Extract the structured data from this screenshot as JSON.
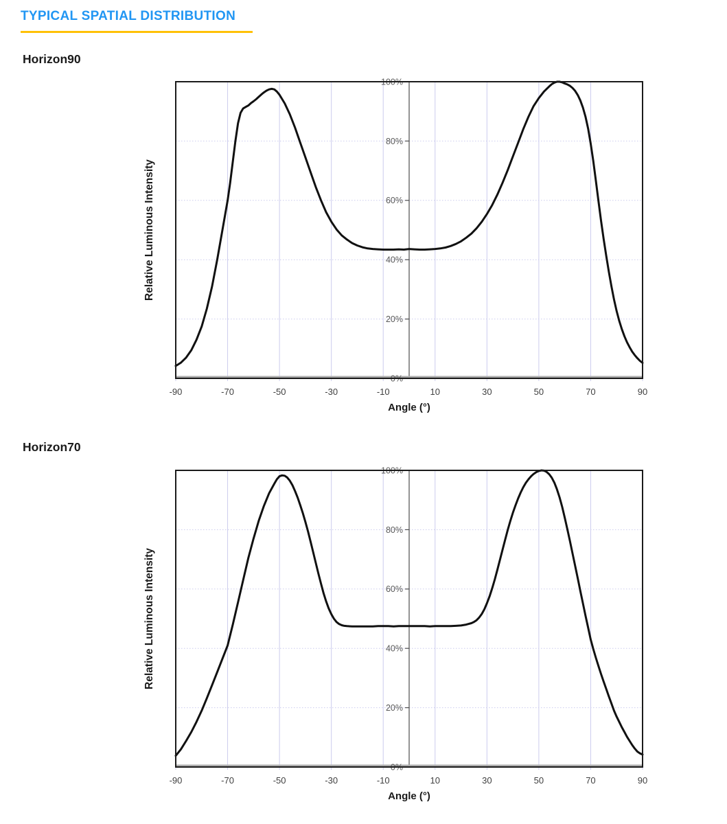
{
  "page": {
    "title": "TYPICAL SPATIAL DISTRIBUTION"
  },
  "colors": {
    "title_blue": "#2196F3",
    "underline_yellow": "#FFC107",
    "curve_black": "#111111",
    "gridline_lavender": "#ccccee",
    "center_axis_gray": "#4d4d4d",
    "baseline_gray": "#ababab",
    "y_tick_label_gray": "#595959",
    "x_tick_label_gray": "#3f3f3f",
    "plot_border_black": "#1a1a1a",
    "background": "#ffffff"
  },
  "charts": [
    {
      "heading": "Horizon90"
    },
    {
      "heading": "Horizon70"
    }
  ],
  "chart_data": [
    {
      "type": "line",
      "title": "Horizon90",
      "xlabel": "Angle (°)",
      "ylabel": "Relative Luminous Intensity",
      "xlim": [
        -90,
        90
      ],
      "ylim": [
        0,
        100
      ],
      "x_ticks": [
        -90,
        -70,
        -50,
        -30,
        -10,
        10,
        30,
        50,
        70,
        90
      ],
      "y_ticks": [
        0,
        20,
        40,
        60,
        80,
        100
      ],
      "y_tick_labels": [
        "0%",
        "20%",
        "40%",
        "60%",
        "80%",
        "100%"
      ],
      "grid": true,
      "legend": "none",
      "series": [
        {
          "name": "Relative Luminous Intensity",
          "points": [
            [
              -90,
              4.2
            ],
            [
              -88,
              5.3
            ],
            [
              -86,
              7
            ],
            [
              -84,
              9.5
            ],
            [
              -82,
              13
            ],
            [
              -80,
              17.5
            ],
            [
              -78,
              23.5
            ],
            [
              -76,
              31
            ],
            [
              -74,
              40
            ],
            [
              -72,
              50
            ],
            [
              -70,
              60
            ],
            [
              -69,
              66
            ],
            [
              -68,
              73
            ],
            [
              -67,
              80
            ],
            [
              -66,
              86
            ],
            [
              -65,
              89.5
            ],
            [
              -64,
              91
            ],
            [
              -63,
              91.5
            ],
            [
              -62,
              92
            ],
            [
              -61,
              92.8
            ],
            [
              -60,
              93.4
            ],
            [
              -59,
              94.1
            ],
            [
              -58,
              94.9
            ],
            [
              -57,
              95.7
            ],
            [
              -56,
              96.4
            ],
            [
              -55,
              97
            ],
            [
              -54,
              97.4
            ],
            [
              -53,
              97.6
            ],
            [
              -52,
              97.4
            ],
            [
              -51,
              96.7
            ],
            [
              -50,
              95.6
            ],
            [
              -48,
              92.7
            ],
            [
              -46,
              89
            ],
            [
              -44,
              84.5
            ],
            [
              -42,
              79.5
            ],
            [
              -40,
              74.5
            ],
            [
              -38,
              69.5
            ],
            [
              -36,
              64.5
            ],
            [
              -34,
              60
            ],
            [
              -32,
              56
            ],
            [
              -30,
              52.8
            ],
            [
              -28,
              50.2
            ],
            [
              -26,
              48.2
            ],
            [
              -24,
              46.8
            ],
            [
              -22,
              45.6
            ],
            [
              -20,
              44.8
            ],
            [
              -18,
              44.2
            ],
            [
              -16,
              43.8
            ],
            [
              -14,
              43.6
            ],
            [
              -12,
              43.5
            ],
            [
              -10,
              43.4
            ],
            [
              -8,
              43.4
            ],
            [
              -6,
              43.4
            ],
            [
              -4,
              43.5
            ],
            [
              -2,
              43.4
            ],
            [
              0,
              43.6
            ],
            [
              2,
              43.5
            ],
            [
              4,
              43.4
            ],
            [
              6,
              43.4
            ],
            [
              8,
              43.5
            ],
            [
              10,
              43.6
            ],
            [
              12,
              43.8
            ],
            [
              14,
              44.1
            ],
            [
              16,
              44.6
            ],
            [
              18,
              45.3
            ],
            [
              20,
              46.2
            ],
            [
              22,
              47.4
            ],
            [
              24,
              48.8
            ],
            [
              26,
              50.6
            ],
            [
              28,
              52.8
            ],
            [
              30,
              55.4
            ],
            [
              32,
              58.4
            ],
            [
              34,
              61.9
            ],
            [
              36,
              65.9
            ],
            [
              38,
              70.2
            ],
            [
              40,
              74.8
            ],
            [
              42,
              79.4
            ],
            [
              44,
              84
            ],
            [
              46,
              88.2
            ],
            [
              48,
              91.8
            ],
            [
              50,
              94.5
            ],
            [
              52,
              96.7
            ],
            [
              54,
              98.4
            ],
            [
              55,
              99.2
            ],
            [
              56,
              99.7
            ],
            [
              57,
              100
            ],
            [
              58,
              100
            ],
            [
              59,
              99.8
            ],
            [
              60,
              99.4
            ],
            [
              61,
              99.1
            ],
            [
              62,
              98.6
            ],
            [
              63,
              97.9
            ],
            [
              64,
              96.9
            ],
            [
              65,
              95.5
            ],
            [
              66,
              93.7
            ],
            [
              67,
              91.3
            ],
            [
              68,
              88.2
            ],
            [
              69,
              84.2
            ],
            [
              70,
              79.2
            ],
            [
              71,
              73.3
            ],
            [
              72,
              66.6
            ],
            [
              73,
              59.7
            ],
            [
              74,
              53
            ],
            [
              75,
              47
            ],
            [
              76,
              41.3
            ],
            [
              77,
              35.9
            ],
            [
              78,
              31
            ],
            [
              79,
              26.6
            ],
            [
              80,
              22.7
            ],
            [
              81,
              19.4
            ],
            [
              82,
              16.6
            ],
            [
              83,
              14.2
            ],
            [
              84,
              12.2
            ],
            [
              85,
              10.5
            ],
            [
              86,
              9
            ],
            [
              87,
              7.8
            ],
            [
              88,
              6.8
            ],
            [
              89,
              5.9
            ],
            [
              90,
              5.2
            ]
          ]
        }
      ]
    },
    {
      "type": "line",
      "title": "Horizon70",
      "xlabel": "Angle (°)",
      "ylabel": "Relative Luminous Intensity",
      "xlim": [
        -90,
        90
      ],
      "ylim": [
        0,
        100
      ],
      "x_ticks": [
        -90,
        -70,
        -50,
        -30,
        -10,
        10,
        30,
        50,
        70,
        90
      ],
      "y_ticks": [
        0,
        20,
        40,
        60,
        80,
        100
      ],
      "y_tick_labels": [
        "0%",
        "20%",
        "40%",
        "60%",
        "80%",
        "100%"
      ],
      "grid": true,
      "legend": "none",
      "series": [
        {
          "name": "Relative Luminous Intensity",
          "points": [
            [
              -90,
              3.8
            ],
            [
              -88,
              6
            ],
            [
              -86,
              8.8
            ],
            [
              -84,
              11.8
            ],
            [
              -82,
              15.2
            ],
            [
              -80,
              19
            ],
            [
              -78,
              23.2
            ],
            [
              -76,
              27.6
            ],
            [
              -74,
              32
            ],
            [
              -72,
              36.5
            ],
            [
              -70,
              41
            ],
            [
              -68,
              48
            ],
            [
              -66,
              55.5
            ],
            [
              -64,
              63
            ],
            [
              -62,
              70.5
            ],
            [
              -60,
              77
            ],
            [
              -58,
              83
            ],
            [
              -56,
              88
            ],
            [
              -54,
              92.3
            ],
            [
              -52,
              95.5
            ],
            [
              -51,
              97
            ],
            [
              -50,
              98
            ],
            [
              -49,
              98.3
            ],
            [
              -48,
              98.2
            ],
            [
              -47,
              97.6
            ],
            [
              -46,
              96.5
            ],
            [
              -45,
              95
            ],
            [
              -44,
              93
            ],
            [
              -43,
              90.8
            ],
            [
              -42,
              88.3
            ],
            [
              -41,
              85.6
            ],
            [
              -40,
              82.6
            ],
            [
              -39,
              79.4
            ],
            [
              -38,
              76
            ],
            [
              -37,
              72.4
            ],
            [
              -36,
              68.8
            ],
            [
              -35,
              65.2
            ],
            [
              -34,
              61.8
            ],
            [
              -33,
              58.6
            ],
            [
              -32,
              55.8
            ],
            [
              -31,
              53.4
            ],
            [
              -30,
              51.5
            ],
            [
              -29,
              50
            ],
            [
              -28,
              48.9
            ],
            [
              -27,
              48.2
            ],
            [
              -26,
              47.8
            ],
            [
              -25,
              47.6
            ],
            [
              -24,
              47.5
            ],
            [
              -22,
              47.4
            ],
            [
              -20,
              47.4
            ],
            [
              -18,
              47.4
            ],
            [
              -16,
              47.4
            ],
            [
              -14,
              47.4
            ],
            [
              -12,
              47.5
            ],
            [
              -10,
              47.5
            ],
            [
              -8,
              47.5
            ],
            [
              -6,
              47.4
            ],
            [
              -4,
              47.5
            ],
            [
              -2,
              47.5
            ],
            [
              0,
              47.5
            ],
            [
              2,
              47.5
            ],
            [
              4,
              47.5
            ],
            [
              6,
              47.5
            ],
            [
              8,
              47.4
            ],
            [
              10,
              47.5
            ],
            [
              12,
              47.5
            ],
            [
              14,
              47.5
            ],
            [
              16,
              47.5
            ],
            [
              18,
              47.6
            ],
            [
              20,
              47.7
            ],
            [
              22,
              48
            ],
            [
              24,
              48.5
            ],
            [
              25,
              48.9
            ],
            [
              26,
              49.5
            ],
            [
              27,
              50.4
            ],
            [
              28,
              51.6
            ],
            [
              29,
              53.2
            ],
            [
              30,
              55.2
            ],
            [
              31,
              57.5
            ],
            [
              32,
              60.2
            ],
            [
              33,
              63.2
            ],
            [
              34,
              66.4
            ],
            [
              35,
              69.8
            ],
            [
              36,
              73.2
            ],
            [
              37,
              76.6
            ],
            [
              38,
              79.9
            ],
            [
              39,
              82.9
            ],
            [
              40,
              85.7
            ],
            [
              41,
              88.2
            ],
            [
              42,
              90.5
            ],
            [
              43,
              92.5
            ],
            [
              44,
              94.3
            ],
            [
              45,
              95.8
            ],
            [
              46,
              97
            ],
            [
              47,
              98
            ],
            [
              48,
              98.8
            ],
            [
              49,
              99.4
            ],
            [
              50,
              99.8
            ],
            [
              51,
              100
            ],
            [
              52,
              99.9
            ],
            [
              53,
              99.5
            ],
            [
              54,
              98.7
            ],
            [
              55,
              97.5
            ],
            [
              56,
              95.8
            ],
            [
              57,
              93.6
            ],
            [
              58,
              90.9
            ],
            [
              59,
              87.7
            ],
            [
              60,
              84
            ],
            [
              61,
              80.2
            ],
            [
              62,
              76.2
            ],
            [
              63,
              72
            ],
            [
              64,
              67.8
            ],
            [
              65,
              63.6
            ],
            [
              66,
              59.4
            ],
            [
              67,
              55.2
            ],
            [
              68,
              51
            ],
            [
              69,
              47
            ],
            [
              70,
              43
            ],
            [
              71,
              39.8
            ],
            [
              72,
              36.8
            ],
            [
              73,
              34
            ],
            [
              74,
              31.3
            ],
            [
              75,
              28.8
            ],
            [
              76,
              26.3
            ],
            [
              77,
              23.8
            ],
            [
              78,
              21.4
            ],
            [
              79,
              19
            ],
            [
              80,
              17
            ],
            [
              81,
              15.2
            ],
            [
              82,
              13.4
            ],
            [
              83,
              11.8
            ],
            [
              84,
              10.2
            ],
            [
              85,
              8.8
            ],
            [
              86,
              7.4
            ],
            [
              87,
              6.2
            ],
            [
              88,
              5.2
            ],
            [
              89,
              4.6
            ],
            [
              90,
              4.2
            ]
          ]
        }
      ]
    }
  ]
}
